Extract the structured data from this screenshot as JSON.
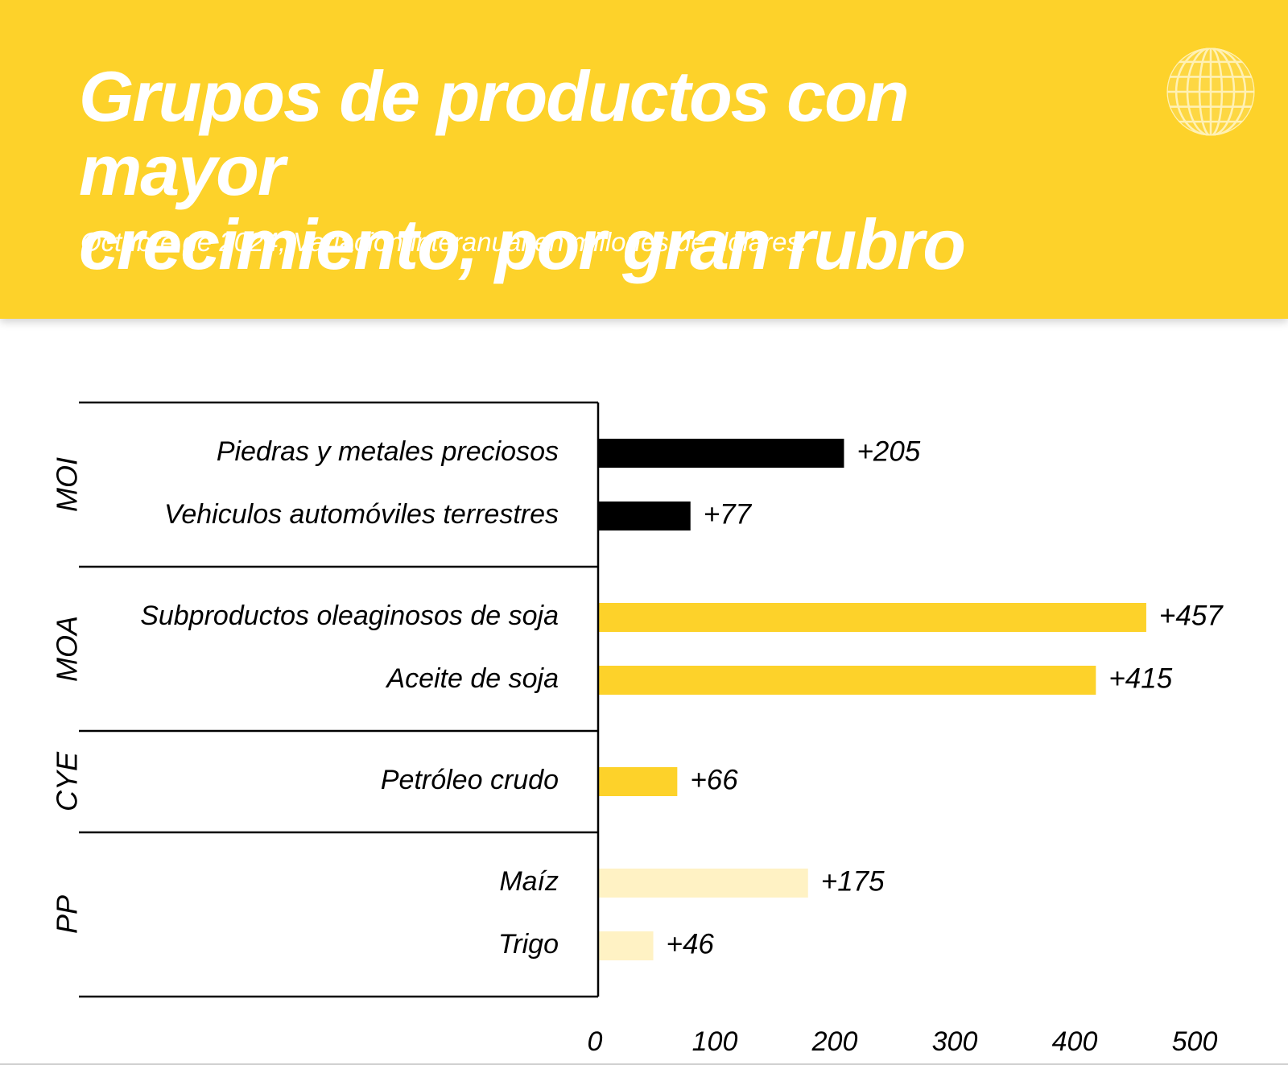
{
  "header": {
    "title_line1": "Grupos de productos con mayor",
    "title_line2": "crecimiento, por gran rubro",
    "subtitle": "Octubre de 2024, Variación interanual en millones de dólares.",
    "icon": "globe-icon"
  },
  "chart_data": {
    "type": "bar",
    "orientation": "horizontal",
    "title": "Grupos de productos con mayor crecimiento, por gran rubro",
    "subtitle": "Octubre de 2024, Variación interanual en millones de dólares.",
    "xlabel": "",
    "ylabel": "",
    "xlim": [
      0,
      500
    ],
    "x_ticks": [
      0,
      100,
      200,
      300,
      400,
      500
    ],
    "grid": false,
    "groups": [
      {
        "name": "MOI",
        "color": "#000000",
        "items": [
          {
            "label": "Piedras y metales preciosos",
            "value": 205,
            "value_label": "+205"
          },
          {
            "label": "Vehiculos automóviles terrestres",
            "value": 77,
            "value_label": "+77"
          }
        ]
      },
      {
        "name": "MOA",
        "color": "#FDD22A",
        "items": [
          {
            "label": "Subproductos oleaginosos de soja",
            "value": 457,
            "value_label": "+457"
          },
          {
            "label": "Aceite de soja",
            "value": 415,
            "value_label": "+415"
          }
        ]
      },
      {
        "name": "CYE",
        "color": "#FDD22A",
        "items": [
          {
            "label": "Petróleo crudo",
            "value": 66,
            "value_label": "+66"
          }
        ]
      },
      {
        "name": "PP",
        "color": "#FFF2C4",
        "items": [
          {
            "label": "Maíz",
            "value": 175,
            "value_label": "+175"
          },
          {
            "label": "Trigo",
            "value": 46,
            "value_label": "+46"
          }
        ]
      }
    ]
  }
}
